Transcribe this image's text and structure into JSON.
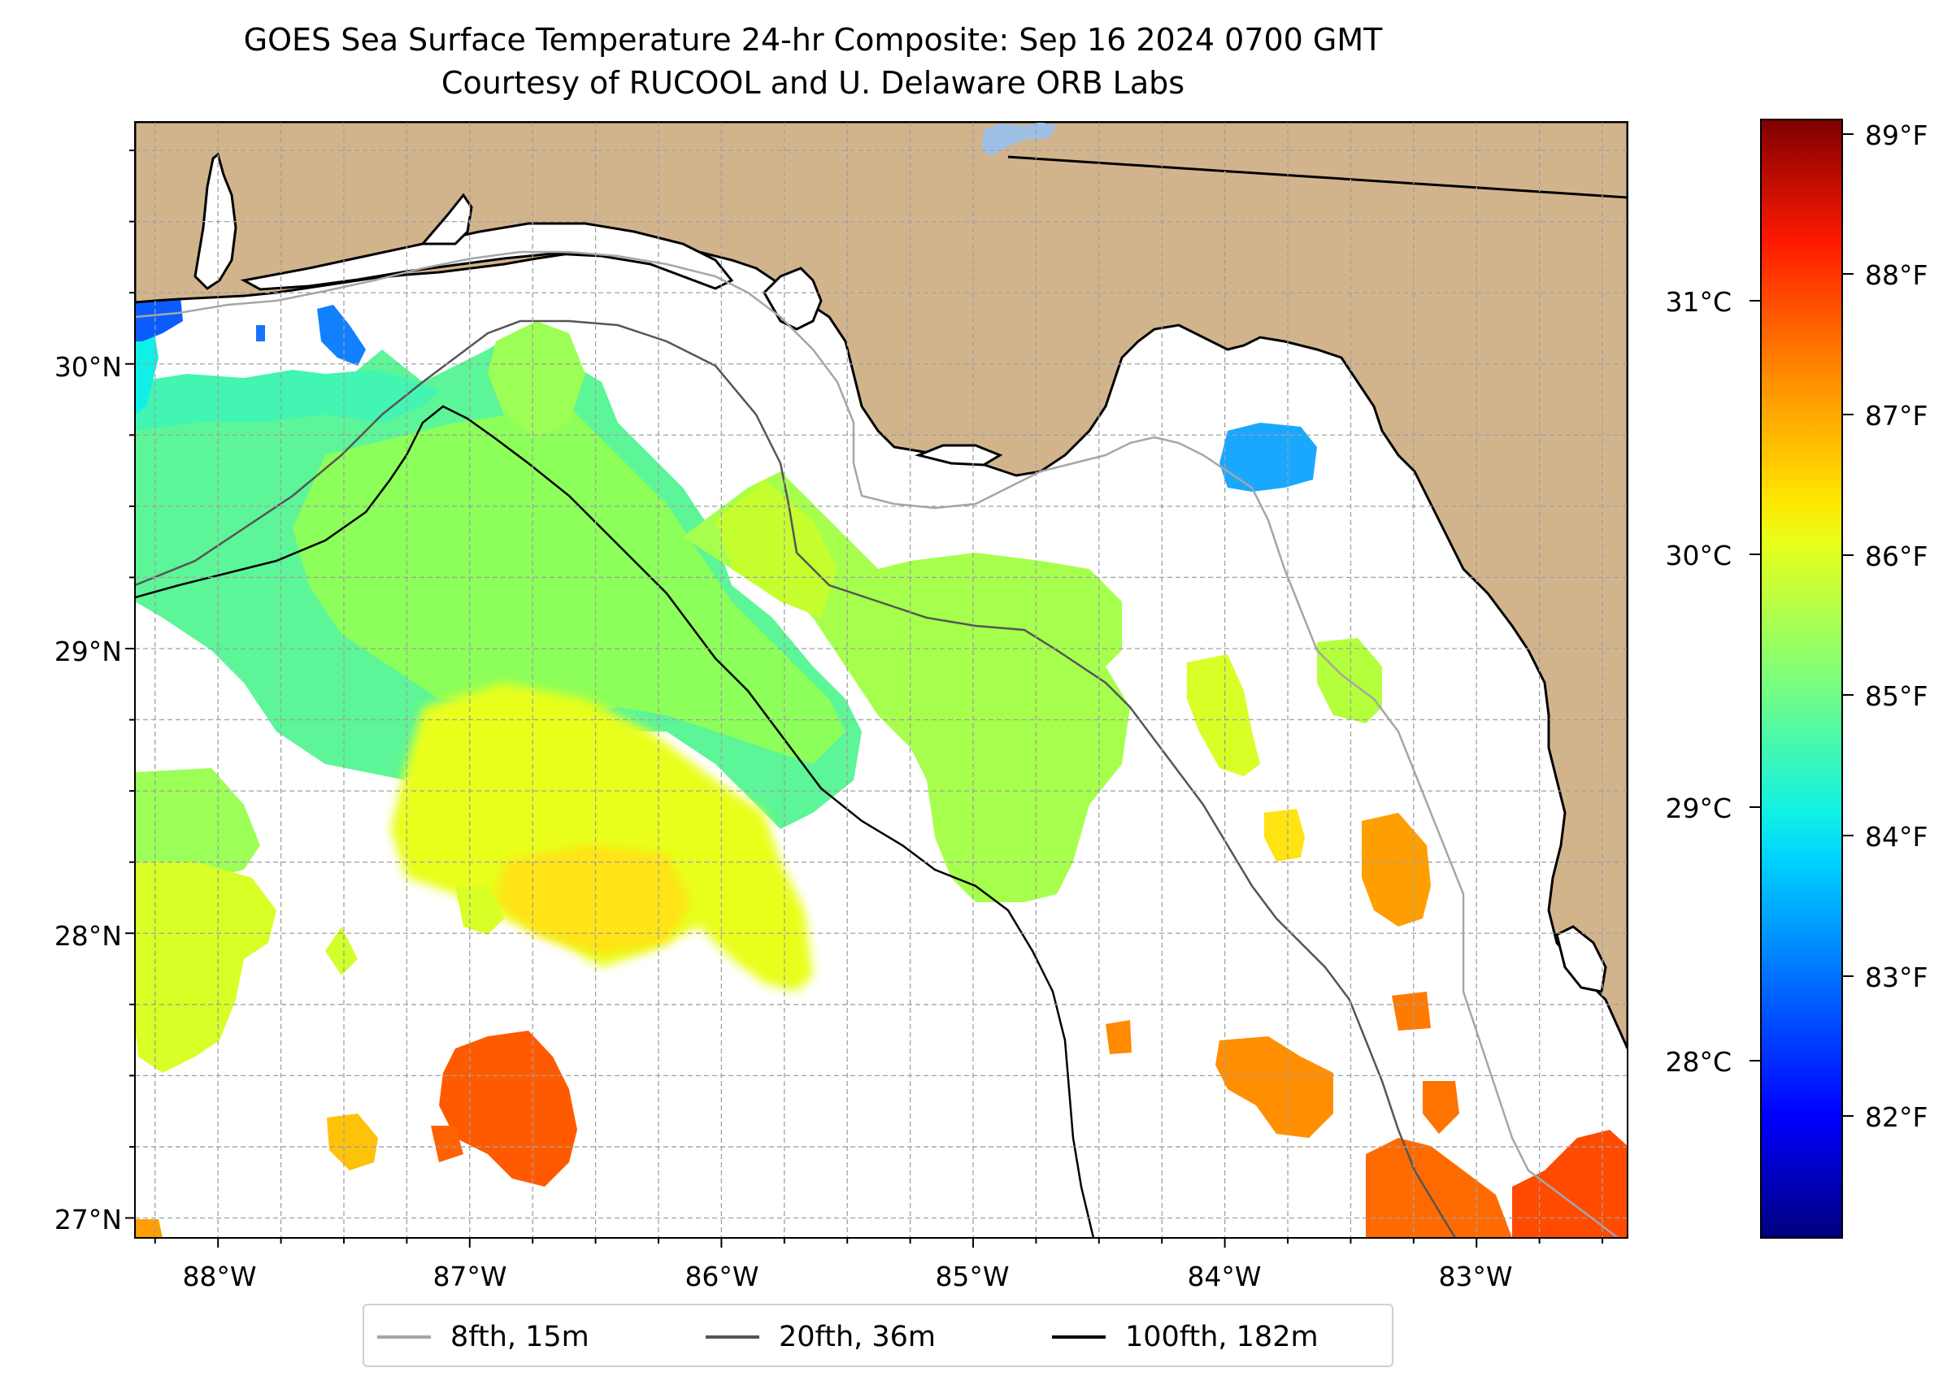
{
  "title": {
    "line1": "GOES Sea Surface Temperature 24-hr Composite: Sep 16 2024 0700 GMT",
    "line2": "Courtesy of RUCOOL and U. Delaware ORB Labs"
  },
  "map": {
    "lon_range": [
      -88.33,
      -82.4
    ],
    "lat_range": [
      26.93,
      30.85
    ],
    "x_ticks": [
      "88°W",
      "87°W",
      "86°W",
      "85°W",
      "84°W",
      "83°W"
    ],
    "y_ticks": [
      "30°N",
      "29°N",
      "28°N",
      "27°N"
    ],
    "land_color": "#d2b48c",
    "grid": true
  },
  "colorbar": {
    "colormap": "jet",
    "fahrenheit_labels": [
      "89°F",
      "88°F",
      "87°F",
      "86°F",
      "85°F",
      "84°F",
      "83°F",
      "82°F"
    ],
    "celsius_labels": [
      "31°C",
      "30°C",
      "29°C",
      "28°C"
    ]
  },
  "legend": {
    "items": [
      {
        "label": "8fth, 15m",
        "color": "#a6a6a6"
      },
      {
        "label": "20fth, 36m",
        "color": "#555555"
      },
      {
        "label": "100fth, 182m",
        "color": "#000000"
      }
    ]
  }
}
